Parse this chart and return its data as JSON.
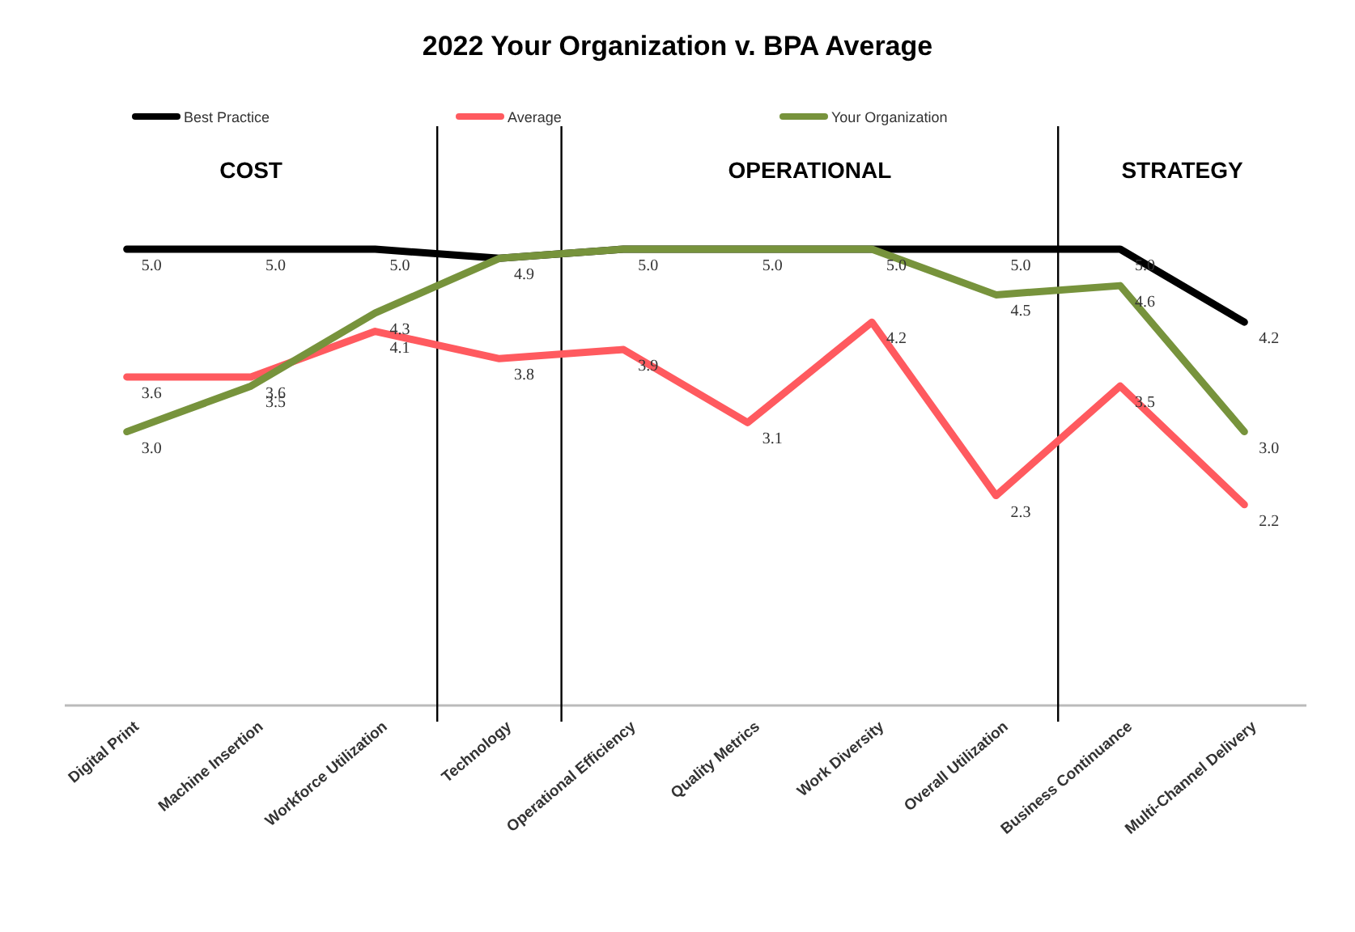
{
  "chart_data": {
    "type": "line",
    "title": "2022 Your Organization v. BPA Average",
    "categories": [
      "Digital Print",
      "Machine Insertion",
      "Workforce Utilization",
      "Technology",
      "Operational Efficiency",
      "Quality Metrics",
      "Work Diversity",
      "Overall Utilization",
      "Business Continuance",
      "Multi-Channel Delivery"
    ],
    "series": [
      {
        "name": "Best Practice",
        "color": "#000000",
        "values": [
          5.0,
          5.0,
          5.0,
          4.9,
          5.0,
          5.0,
          5.0,
          5.0,
          5.0,
          4.2
        ],
        "value_labels": [
          "5.0",
          "5.0",
          "5.0",
          null,
          null,
          null,
          null,
          "5.0",
          "5.0",
          "4.2"
        ]
      },
      {
        "name": "Average",
        "color": "#ff5a5f",
        "values": [
          3.6,
          3.6,
          4.1,
          3.8,
          3.9,
          3.1,
          4.2,
          2.3,
          3.5,
          2.2
        ],
        "value_labels": [
          "3.6",
          "3.6",
          "4.1",
          "3.8",
          "3.9",
          "3.1",
          "4.2",
          "2.3",
          "3.5",
          "2.2"
        ]
      },
      {
        "name": "Your Organization",
        "color": "#77933c",
        "values": [
          3.0,
          3.5,
          4.3,
          4.9,
          5.0,
          5.0,
          5.0,
          4.5,
          4.6,
          3.0
        ],
        "value_labels": [
          "3.0",
          "3.5",
          "4.3",
          "4.9",
          "5.0",
          "5.0",
          "5.0",
          "4.5",
          "4.6",
          "3.0"
        ]
      }
    ],
    "tick_labels": "x",
    "legend": "top",
    "marker": "none",
    "line_style": "solid",
    "annotations": [
      "COST",
      "OPERATIONAL",
      "STRATEGY"
    ]
  }
}
